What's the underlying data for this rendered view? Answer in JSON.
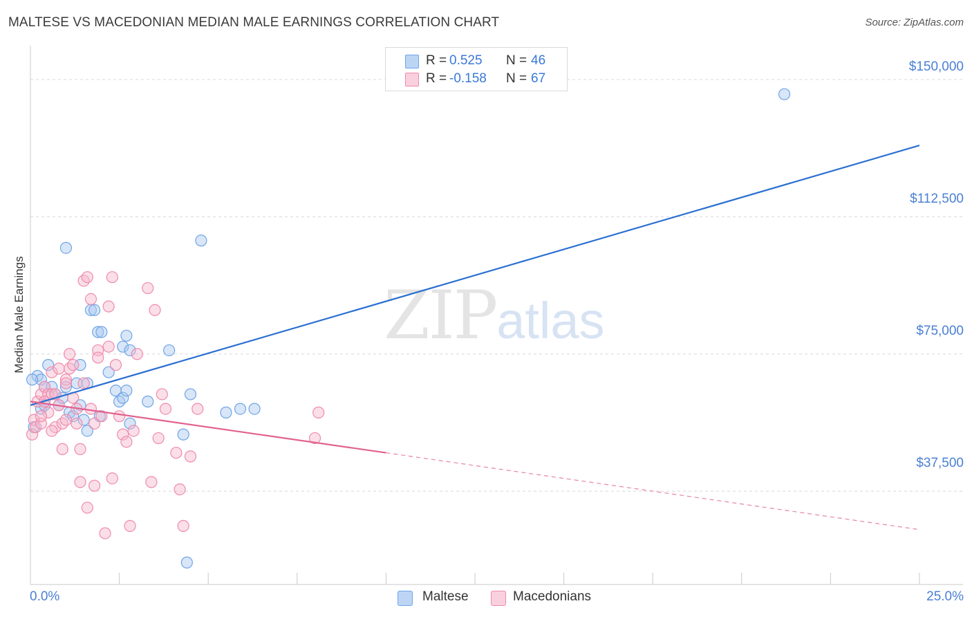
{
  "header": {
    "title": "MALTESE VS MACEDONIAN MEDIAN MALE EARNINGS CORRELATION CHART",
    "source": "Source: ZipAtlas.com"
  },
  "watermark": {
    "zip": "ZIP",
    "atlas": "atlas"
  },
  "legend_top": {
    "rows": [
      {
        "r_label": "R =",
        "r_value": "0.525",
        "n_label": "N =",
        "n_value": "46",
        "color": "#a8c8f0"
      },
      {
        "r_label": "R =",
        "r_value": "-0.158",
        "n_label": "N =",
        "n_value": "67",
        "color": "#f7b8cc"
      }
    ]
  },
  "legend_bottom": {
    "items": [
      {
        "label": "Maltese",
        "color": "#a8c8f0"
      },
      {
        "label": "Macedonians",
        "color": "#f7b8cc"
      }
    ]
  },
  "chart_data": {
    "type": "scatter",
    "title": "MALTESE VS MACEDONIAN MEDIAN MALE EARNINGS CORRELATION CHART",
    "xlabel": "",
    "ylabel": "Median Male Earnings",
    "xlim": [
      0,
      25
    ],
    "ylim": [
      12000,
      157000
    ],
    "x_tick_labels": {
      "left": "0.0%",
      "right": "25.0%"
    },
    "y_ticks": [
      {
        "value": 37500,
        "label": "$37,500"
      },
      {
        "value": 75000,
        "label": "$75,000"
      },
      {
        "value": 112500,
        "label": "$112,500"
      },
      {
        "value": 150000,
        "label": "$150,000"
      }
    ],
    "x_minor_ticks": [
      0,
      2.5,
      5,
      7.5,
      10,
      12.5,
      15,
      17.5,
      20,
      22.5,
      25
    ],
    "series": [
      {
        "name": "Maltese",
        "color": "#6ea4e6",
        "fill": "#a8c8f0",
        "trend": {
          "x0": 0,
          "y0": 61000,
          "x1": 25,
          "y1": 132000,
          "solid_to": 25
        },
        "points": [
          [
            0.1,
            55000
          ],
          [
            0.2,
            69000
          ],
          [
            0.3,
            68000
          ],
          [
            0.3,
            60000
          ],
          [
            0.4,
            66000
          ],
          [
            0.4,
            61000
          ],
          [
            0.5,
            72000
          ],
          [
            0.6,
            66000
          ],
          [
            0.7,
            64000
          ],
          [
            0.8,
            61000
          ],
          [
            0.9,
            63000
          ],
          [
            1.0,
            66000
          ],
          [
            1.0,
            104000
          ],
          [
            1.1,
            59000
          ],
          [
            1.2,
            58000
          ],
          [
            1.3,
            67000
          ],
          [
            1.4,
            61000
          ],
          [
            1.4,
            72000
          ],
          [
            1.5,
            57000
          ],
          [
            1.6,
            67000
          ],
          [
            1.6,
            54000
          ],
          [
            1.7,
            87000
          ],
          [
            1.8,
            87000
          ],
          [
            1.9,
            81000
          ],
          [
            1.95,
            58000
          ],
          [
            2.0,
            81000
          ],
          [
            2.2,
            70000
          ],
          [
            2.4,
            65000
          ],
          [
            2.5,
            62000
          ],
          [
            2.6,
            63000
          ],
          [
            2.6,
            77000
          ],
          [
            2.7,
            80000
          ],
          [
            2.7,
            65000
          ],
          [
            2.8,
            76000
          ],
          [
            2.8,
            56000
          ],
          [
            3.3,
            62000
          ],
          [
            3.9,
            76000
          ],
          [
            4.3,
            53000
          ],
          [
            4.5,
            64000
          ],
          [
            4.8,
            106000
          ],
          [
            4.4,
            18000
          ],
          [
            5.5,
            59000
          ],
          [
            5.9,
            60000
          ],
          [
            6.3,
            60000
          ],
          [
            21.2,
            146000
          ],
          [
            0.05,
            68000
          ]
        ]
      },
      {
        "name": "Macedonians",
        "color": "#ef8aab",
        "fill": "#f7b8cc",
        "trend": {
          "x0": 0,
          "y0": 62000,
          "x1": 25,
          "y1": 27000,
          "solid_to": 10
        },
        "points": [
          [
            0.05,
            53000
          ],
          [
            0.1,
            57000
          ],
          [
            0.15,
            55000
          ],
          [
            0.2,
            62000
          ],
          [
            0.3,
            64000
          ],
          [
            0.3,
            56000
          ],
          [
            0.4,
            66000
          ],
          [
            0.5,
            64000
          ],
          [
            0.5,
            59000
          ],
          [
            0.6,
            70000
          ],
          [
            0.6,
            64000
          ],
          [
            0.7,
            55000
          ],
          [
            0.8,
            71000
          ],
          [
            0.8,
            61000
          ],
          [
            0.9,
            56000
          ],
          [
            0.9,
            49000
          ],
          [
            1.0,
            68000
          ],
          [
            1.0,
            67000
          ],
          [
            1.1,
            71000
          ],
          [
            1.1,
            75000
          ],
          [
            1.2,
            72000
          ],
          [
            1.2,
            63000
          ],
          [
            1.3,
            60000
          ],
          [
            1.3,
            56000
          ],
          [
            1.4,
            49000
          ],
          [
            1.4,
            40000
          ],
          [
            1.5,
            67000
          ],
          [
            1.5,
            95000
          ],
          [
            1.6,
            96000
          ],
          [
            1.6,
            33000
          ],
          [
            1.7,
            90000
          ],
          [
            1.7,
            60000
          ],
          [
            1.8,
            39000
          ],
          [
            1.8,
            56000
          ],
          [
            1.9,
            76000
          ],
          [
            1.9,
            74000
          ],
          [
            2.0,
            58000
          ],
          [
            2.1,
            26000
          ],
          [
            2.2,
            77000
          ],
          [
            2.2,
            88000
          ],
          [
            2.3,
            96000
          ],
          [
            2.3,
            41000
          ],
          [
            2.4,
            72000
          ],
          [
            2.5,
            58000
          ],
          [
            2.6,
            53000
          ],
          [
            2.7,
            51000
          ],
          [
            2.8,
            28000
          ],
          [
            3.0,
            75000
          ],
          [
            3.3,
            93000
          ],
          [
            3.4,
            40000
          ],
          [
            3.5,
            87000
          ],
          [
            3.6,
            52000
          ],
          [
            3.7,
            64000
          ],
          [
            3.8,
            60000
          ],
          [
            4.1,
            48000
          ],
          [
            4.2,
            38000
          ],
          [
            4.3,
            28000
          ],
          [
            4.5,
            47000
          ],
          [
            4.7,
            60000
          ],
          [
            8.0,
            52000
          ],
          [
            8.1,
            59000
          ],
          [
            0.4,
            62000
          ],
          [
            0.7,
            64000
          ],
          [
            1.0,
            57000
          ],
          [
            0.3,
            58000
          ],
          [
            0.6,
            54000
          ],
          [
            2.9,
            54000
          ]
        ]
      }
    ]
  }
}
